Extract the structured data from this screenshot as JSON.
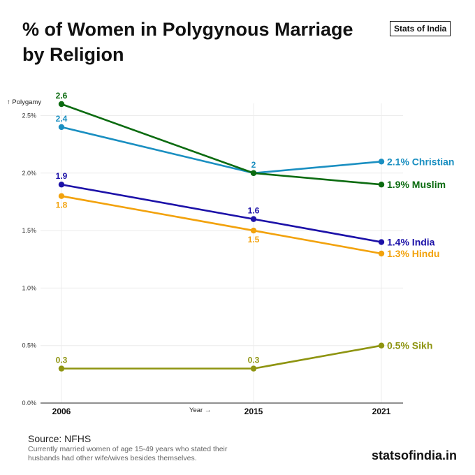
{
  "header": {
    "title_line1": "% of Women in Polygynous Marriage",
    "title_line2": "by Religion",
    "brand": "Stats of India"
  },
  "footer": {
    "source": "Source: NFHS",
    "note": "Currently married women of age 15-49 years  who stated their husbands had other wife/wives besides themselves.",
    "site": "statsofindia.in"
  },
  "chart_data": {
    "type": "line",
    "title": "% of Women in Polygynous Marriage by Religion",
    "ylabel": "↑ Polygamy",
    "xlabel": "Year →",
    "x": [
      "2006",
      "2015",
      "2021"
    ],
    "ylim": [
      0,
      2.7
    ],
    "yticks": [
      0,
      0.5,
      1.0,
      1.5,
      2.0,
      2.5
    ],
    "ytick_labels": [
      "0.0%",
      "0.5%",
      "1.0%",
      "1.5%",
      "2.0%",
      "2.5%"
    ],
    "grid": true,
    "series": [
      {
        "name": "Christian",
        "color": "#1a8fc1",
        "values": [
          2.4,
          2.0,
          2.1
        ],
        "point_labels": [
          "2.4",
          "2",
          ""
        ],
        "label_pos": [
          "above",
          "above",
          ""
        ],
        "end_label": "2.1% Christian"
      },
      {
        "name": "Muslim",
        "color": "#0b6b10",
        "values": [
          2.6,
          2.0,
          1.9
        ],
        "point_labels": [
          "2.6",
          "",
          ""
        ],
        "label_pos": [
          "above",
          "",
          ""
        ],
        "end_label": "1.9% Muslim"
      },
      {
        "name": "India",
        "color": "#1c11a8",
        "values": [
          1.9,
          1.6,
          1.4
        ],
        "point_labels": [
          "1.9",
          "1.6",
          ""
        ],
        "label_pos": [
          "above",
          "above",
          ""
        ],
        "end_label": "1.4% India"
      },
      {
        "name": "Hindu",
        "color": "#f2a20c",
        "values": [
          1.8,
          1.5,
          1.3
        ],
        "point_labels": [
          "1.8",
          "1.5",
          ""
        ],
        "label_pos": [
          "below",
          "below",
          ""
        ],
        "end_label": "1.3% Hindu"
      },
      {
        "name": "Sikh",
        "color": "#8e9410",
        "values": [
          0.3,
          0.3,
          0.5
        ],
        "point_labels": [
          "0.3",
          "0.3",
          ""
        ],
        "label_pos": [
          "above",
          "above",
          ""
        ],
        "end_label": "0.5% Sikh"
      }
    ]
  }
}
